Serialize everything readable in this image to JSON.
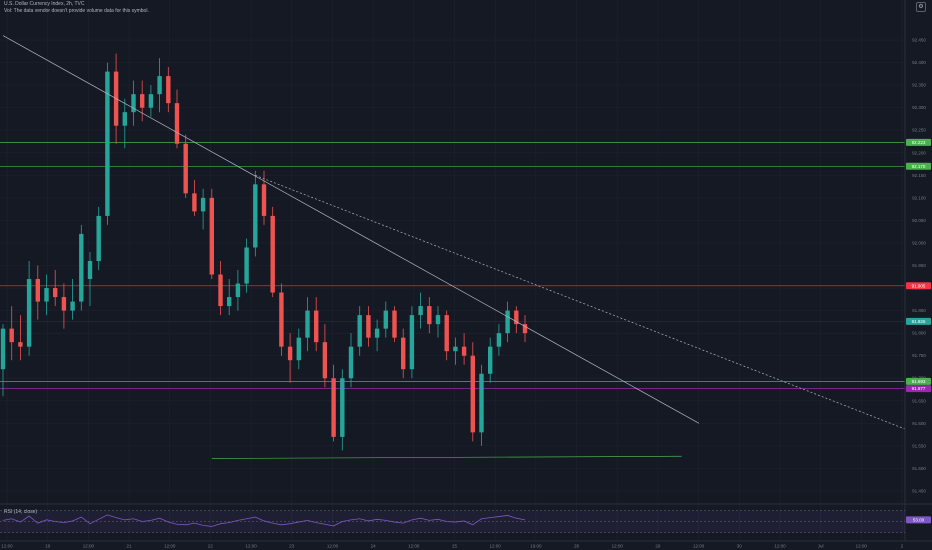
{
  "header": {
    "title": "U.S. Dollar Currency Index, 2h, TVC",
    "volume_note": "Vol: The data vendor doesn't provide volume data for this symbol.",
    "rsi_label": "RSI (14, close)"
  },
  "colors": {
    "background": "#151924",
    "grid": "#1f2330",
    "up": "#26a69a",
    "down": "#ef5350",
    "green_line": "#4caf50",
    "red_line": "#f23645",
    "purple_line": "#9c27b0",
    "rsi_line": "#7e57c2",
    "trendline": "#b2b5be"
  },
  "chart_data": {
    "type": "candlestick",
    "title": "U.S. Dollar Currency Index, 2h, TVC",
    "y_axis_ticks": [
      "92.450",
      "92.400",
      "92.350",
      "92.300",
      "92.250",
      "92.200",
      "92.150",
      "92.100",
      "92.050",
      "92.000",
      "91.950",
      "91.900",
      "91.850",
      "91.800",
      "91.750",
      "91.700",
      "91.650",
      "91.600",
      "91.550",
      "91.500",
      "91.450"
    ],
    "x_axis_ticks": [
      "12:00",
      "19",
      "12:00",
      "21",
      "12:00",
      "22",
      "12:00",
      "23",
      "12:00",
      "24",
      "12:00",
      "25",
      "12:00",
      "19:00",
      "28",
      "12:00",
      "29",
      "12:00",
      "30",
      "12:00",
      "Jul",
      "12:00",
      "2"
    ],
    "ylim": [
      91.43,
      92.49
    ],
    "price_labels": [
      {
        "value": 92.223,
        "color": "#4caf50"
      },
      {
        "value": 92.17,
        "color": "#4caf50"
      },
      {
        "value": 91.905,
        "color": "#f23645"
      },
      {
        "value": 91.826,
        "color": "#26a69a"
      },
      {
        "value": 91.693,
        "color": "#4caf50"
      },
      {
        "value": 91.677,
        "color": "#9c27b0"
      }
    ],
    "horizontal_levels": [
      {
        "value": 92.223,
        "color": "#4caf50"
      },
      {
        "value": 92.17,
        "color": "#4caf50"
      },
      {
        "value": 91.905,
        "color": "#f23645"
      },
      {
        "value": 91.826,
        "color": "#2a2e39"
      },
      {
        "value": 91.693,
        "color": "#4caf50"
      },
      {
        "value": 91.677,
        "color": "#9c27b0"
      }
    ],
    "trendlines": [
      {
        "from": [
          0.0,
          92.46
        ],
        "to": [
          80.0,
          91.6
        ],
        "style": "solid"
      },
      {
        "from": [
          29.0,
          92.15
        ],
        "to": [
          106.0,
          91.57
        ],
        "style": "dashed"
      },
      {
        "from": [
          24.0,
          91.522
        ],
        "to": [
          78.0,
          91.527
        ],
        "style": "solid",
        "color": "#4caf50"
      }
    ],
    "candles": [
      [
        91.72,
        91.82,
        91.66,
        91.81
      ],
      [
        91.81,
        91.86,
        91.74,
        91.78
      ],
      [
        91.78,
        91.84,
        91.74,
        91.77
      ],
      [
        91.77,
        91.96,
        91.75,
        91.92
      ],
      [
        91.92,
        91.95,
        91.83,
        91.87
      ],
      [
        91.87,
        91.93,
        91.84,
        91.9
      ],
      [
        91.9,
        91.94,
        91.86,
        91.88
      ],
      [
        91.88,
        91.91,
        91.81,
        91.85
      ],
      [
        91.85,
        91.92,
        91.83,
        91.87
      ],
      [
        91.87,
        92.04,
        91.85,
        92.02
      ],
      [
        91.92,
        91.98,
        91.86,
        91.96
      ],
      [
        91.96,
        92.08,
        91.94,
        92.06
      ],
      [
        92.06,
        92.4,
        92.04,
        92.38
      ],
      [
        92.38,
        92.42,
        92.22,
        92.26
      ],
      [
        92.26,
        92.32,
        92.21,
        92.29
      ],
      [
        92.29,
        92.36,
        92.26,
        92.33
      ],
      [
        92.33,
        92.36,
        92.27,
        92.3
      ],
      [
        92.3,
        92.35,
        92.28,
        92.33
      ],
      [
        92.33,
        92.41,
        92.29,
        92.37
      ],
      [
        92.37,
        92.39,
        92.29,
        92.31
      ],
      [
        92.31,
        92.34,
        92.21,
        92.22
      ],
      [
        92.22,
        92.24,
        92.1,
        92.11
      ],
      [
        92.11,
        92.14,
        92.06,
        92.07
      ],
      [
        92.07,
        92.12,
        92.03,
        92.1
      ],
      [
        92.1,
        92.12,
        91.92,
        91.93
      ],
      [
        91.93,
        91.96,
        91.84,
        91.86
      ],
      [
        91.86,
        91.92,
        91.84,
        91.88
      ],
      [
        91.88,
        91.94,
        91.85,
        91.91
      ],
      [
        91.91,
        92.01,
        91.89,
        91.99
      ],
      [
        91.99,
        92.16,
        91.97,
        92.13
      ],
      [
        92.13,
        92.16,
        92.04,
        92.06
      ],
      [
        92.06,
        92.08,
        91.88,
        91.89
      ],
      [
        91.89,
        91.91,
        91.75,
        91.77
      ],
      [
        91.77,
        91.8,
        91.69,
        91.74
      ],
      [
        91.74,
        91.81,
        91.72,
        91.79
      ],
      [
        91.79,
        91.88,
        91.76,
        91.85
      ],
      [
        91.85,
        91.88,
        91.76,
        91.78
      ],
      [
        91.78,
        91.82,
        91.68,
        91.7
      ],
      [
        91.7,
        91.73,
        91.56,
        91.57
      ],
      [
        91.57,
        91.72,
        91.54,
        91.7
      ],
      [
        91.7,
        91.8,
        91.68,
        91.77
      ],
      [
        91.77,
        91.86,
        91.75,
        91.84
      ],
      [
        91.84,
        91.86,
        91.77,
        91.79
      ],
      [
        91.79,
        91.83,
        91.76,
        91.81
      ],
      [
        91.81,
        91.87,
        91.79,
        91.85
      ],
      [
        91.85,
        91.86,
        91.78,
        91.79
      ],
      [
        91.79,
        91.81,
        91.7,
        91.72
      ],
      [
        91.72,
        91.86,
        91.7,
        91.84
      ],
      [
        91.84,
        91.89,
        91.81,
        91.86
      ],
      [
        91.86,
        91.88,
        91.8,
        91.82
      ],
      [
        91.82,
        91.86,
        91.79,
        91.84
      ],
      [
        91.84,
        91.85,
        91.74,
        91.76
      ],
      [
        91.76,
        91.79,
        91.73,
        91.77
      ],
      [
        91.77,
        91.8,
        91.73,
        91.75
      ],
      [
        91.75,
        91.78,
        91.56,
        91.58
      ],
      [
        91.58,
        91.73,
        91.55,
        91.71
      ],
      [
        91.71,
        91.79,
        91.69,
        91.77
      ],
      [
        91.77,
        91.82,
        91.75,
        91.8
      ],
      [
        91.8,
        91.87,
        91.78,
        91.85
      ],
      [
        91.85,
        91.86,
        91.8,
        91.82
      ],
      [
        91.82,
        91.84,
        91.78,
        91.8
      ]
    ],
    "rsi": [
      52,
      55,
      49,
      60,
      47,
      53,
      50,
      48,
      51,
      58,
      46,
      54,
      62,
      57,
      53,
      55,
      50,
      52,
      56,
      49,
      45,
      44,
      47,
      43,
      41,
      46,
      48,
      52,
      55,
      58,
      51,
      47,
      44,
      46,
      49,
      52,
      48,
      45,
      42,
      50,
      53,
      55,
      51,
      54,
      52,
      49,
      47,
      53,
      56,
      52,
      54,
      50,
      49,
      51,
      44,
      55,
      57,
      59,
      61,
      56,
      53
    ]
  }
}
